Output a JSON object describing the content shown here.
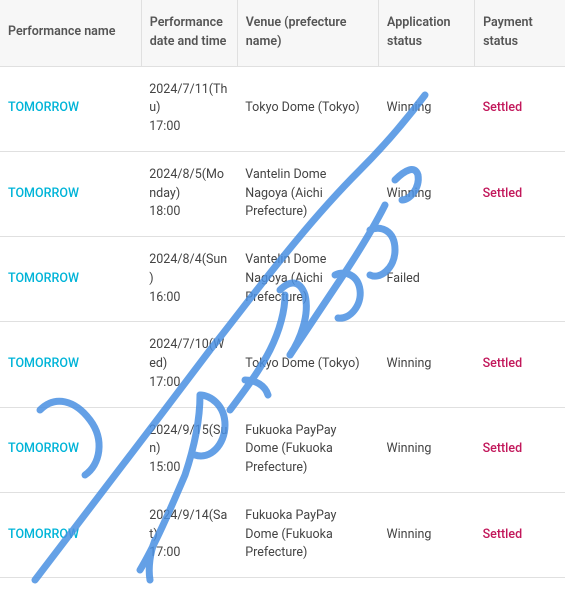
{
  "columns": {
    "c0": "Performance name",
    "c1": "Performance date and time",
    "c2": "Venue (prefecture name)",
    "c3": "Application status",
    "c4": "Payment status"
  },
  "rows": [
    {
      "name": "TOMORROW",
      "datetime": "2024/7/11(Thu)\n17:00",
      "venue": "Tokyo Dome (Tokyo)",
      "app_status": "Winning",
      "pay_status": "Settled"
    },
    {
      "name": "TOMORROW",
      "datetime": "2024/8/5(Monday)\n18:00",
      "venue": "Vantelin Dome Nagoya (Aichi Prefecture)",
      "app_status": "Winning",
      "pay_status": "Settled"
    },
    {
      "name": "TOMORROW",
      "datetime": "2024/8/4(Sun)\n16:00",
      "venue": "Vantelin Dome Nagoya (Aichi Prefecture)",
      "app_status": "Failed",
      "pay_status": ""
    },
    {
      "name": "TOMORROW",
      "datetime": "2024/7/10(Wed)\n17:00",
      "venue": "Tokyo Dome (Tokyo)",
      "app_status": "Winning",
      "pay_status": "Settled"
    },
    {
      "name": "TOMORROW",
      "datetime": "2024/9/15(Sun)\n15:00",
      "venue": "Fukuoka PayPay Dome (Fukuoka Prefecture)",
      "app_status": "Winning",
      "pay_status": "Settled"
    },
    {
      "name": "TOMORROW",
      "datetime": "2024/9/14(Sat)\n17:00",
      "venue": "Fukuoka PayPay Dome (Fukuoka Prefecture)",
      "app_status": "Winning",
      "pay_status": "Settled"
    }
  ],
  "colors": {
    "perf_name": "#00b4d8",
    "settled": "#c2185b",
    "header_bg": "#f7f7f7",
    "border": "#e0e0e0",
    "scribble": "#3b82f6"
  }
}
